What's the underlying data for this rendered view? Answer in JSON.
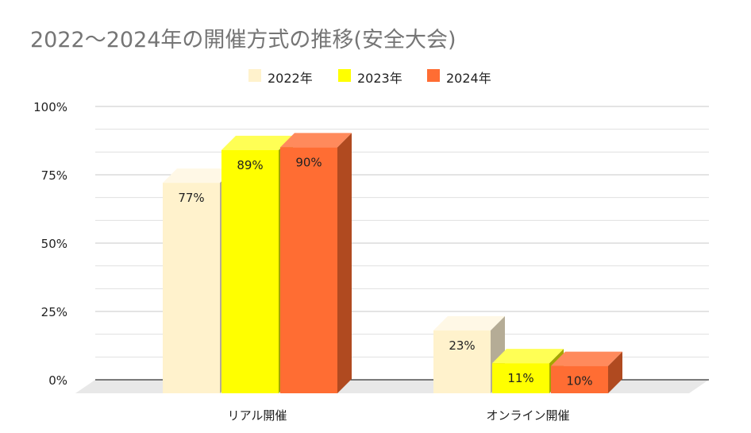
{
  "chart_data": {
    "type": "bar",
    "title": "2022～2024年の開催方式の推移(安全大会)",
    "categories": [
      "リアル開催",
      "オンライン開催"
    ],
    "series": [
      {
        "name": "2022年",
        "values": [
          77,
          23
        ],
        "color": "#FFF2CC",
        "side_color": "#B5AC96",
        "top_color": "#FFF8E6"
      },
      {
        "name": "2023年",
        "values": [
          89,
          11
        ],
        "color": "#FFFF00",
        "side_color": "#A3A600",
        "top_color": "#FFFF55"
      },
      {
        "name": "2024年",
        "values": [
          90,
          10
        ],
        "color": "#FF6D33",
        "side_color": "#B04A20",
        "top_color": "#FF8A5C"
      }
    ],
    "data_labels": [
      [
        "77%",
        "23%"
      ],
      [
        "89%",
        "11%"
      ],
      [
        "90%",
        "10%"
      ]
    ],
    "ylim": [
      0,
      100
    ],
    "yticks": [
      0,
      25,
      50,
      75,
      100
    ],
    "ytick_labels": [
      "0%",
      "25%",
      "50%",
      "75%",
      "100%"
    ],
    "xlabel": "",
    "ylabel": "",
    "grid": true,
    "legend_position": "top-center",
    "three_d": true
  }
}
